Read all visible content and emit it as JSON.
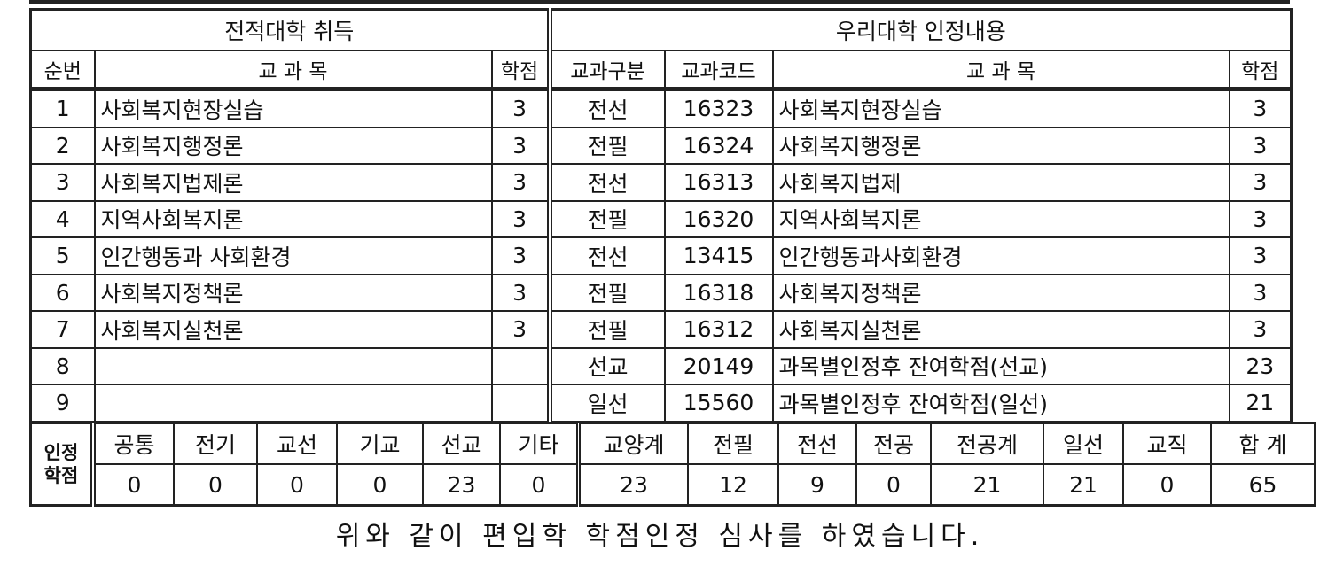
{
  "headers": {
    "left_title": "전적대학 취득",
    "right_title": "우리대학 인정내용",
    "no": "순번",
    "course": "교 과 목",
    "credit": "학점",
    "category": "교과구분",
    "code": "교과코드",
    "course_r": "교 과 목",
    "credit_r": "학점"
  },
  "rows": [
    {
      "no": "1",
      "course": "사회복지현장실습",
      "credit": "3",
      "category": "전선",
      "code": "16323",
      "course_r": "사회복지현장실습",
      "credit_r": "3"
    },
    {
      "no": "2",
      "course": "사회복지행정론",
      "credit": "3",
      "category": "전필",
      "code": "16324",
      "course_r": "사회복지행정론",
      "credit_r": "3"
    },
    {
      "no": "3",
      "course": "사회복지법제론",
      "credit": "3",
      "category": "전선",
      "code": "16313",
      "course_r": "사회복지법제",
      "credit_r": "3"
    },
    {
      "no": "4",
      "course": "지역사회복지론",
      "credit": "3",
      "category": "전필",
      "code": "16320",
      "course_r": "지역사회복지론",
      "credit_r": "3"
    },
    {
      "no": "5",
      "course": "인간행동과 사회환경",
      "credit": "3",
      "category": "전선",
      "code": "13415",
      "course_r": "인간행동과사회환경",
      "credit_r": "3"
    },
    {
      "no": "6",
      "course": "사회복지정책론",
      "credit": "3",
      "category": "전필",
      "code": "16318",
      "course_r": "사회복지정책론",
      "credit_r": "3"
    },
    {
      "no": "7",
      "course": "사회복지실천론",
      "credit": "3",
      "category": "전필",
      "code": "16312",
      "course_r": "사회복지실천론",
      "credit_r": "3"
    },
    {
      "no": "8",
      "course": "",
      "credit": "",
      "category": "선교",
      "code": "20149",
      "course_r": "과목별인정후 잔여학점(선교)",
      "credit_r": "23"
    },
    {
      "no": "9",
      "course": "",
      "credit": "",
      "category": "일선",
      "code": "15560",
      "course_r": "과목별인정후 잔여학점(일선)",
      "credit_r": "21"
    }
  ],
  "summary": {
    "label_line1": "인정",
    "label_line2": "학점",
    "items": [
      {
        "label": "공통",
        "value": "0"
      },
      {
        "label": "전기",
        "value": "0"
      },
      {
        "label": "교선",
        "value": "0"
      },
      {
        "label": "기교",
        "value": "0"
      },
      {
        "label": "선교",
        "value": "23"
      },
      {
        "label": "기타",
        "value": "0"
      },
      {
        "label": "교양계",
        "value": "23"
      },
      {
        "label": "전필",
        "value": "12"
      },
      {
        "label": "전선",
        "value": "9"
      },
      {
        "label": "전공",
        "value": "0"
      },
      {
        "label": "전공계",
        "value": "21"
      },
      {
        "label": "일선",
        "value": "21"
      },
      {
        "label": "교직",
        "value": "0"
      },
      {
        "label": "합 계",
        "value": "65"
      }
    ]
  },
  "footer": "위와 같이 편입학 학점인정 심사를 하였습니다."
}
